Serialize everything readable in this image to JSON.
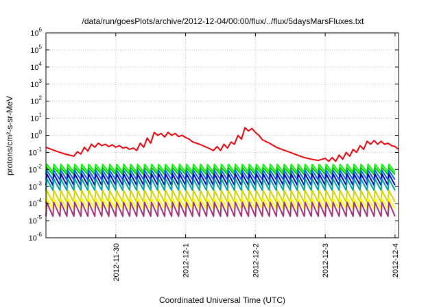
{
  "chart_data": {
    "type": "line",
    "title": "/data/run/goesPlots/archive/2012-12-04/00:00/flux/../flux/5daysMarsFluxes.txt",
    "xlabel": "Coordinated Universal Time (UTC)",
    "ylabel": "protons/cm²-s-sr-MeV",
    "y_scale": "log",
    "ylim": [
      1e-06,
      1000000.0
    ],
    "xlim": [
      0,
      5.05
    ],
    "x_ticks": [
      {
        "value": 1.0,
        "label": "2012-11-30"
      },
      {
        "value": 2.0,
        "label": "2012-12-1"
      },
      {
        "value": 3.0,
        "label": "2012-12-2"
      },
      {
        "value": 4.0,
        "label": "2012-12-3"
      },
      {
        "value": 5.0,
        "label": "2012-12-4"
      }
    ],
    "y_ticks": [
      {
        "exp": -6
      },
      {
        "exp": -5
      },
      {
        "exp": -4
      },
      {
        "exp": -3
      },
      {
        "exp": -2
      },
      {
        "exp": -1
      },
      {
        "exp": 0
      },
      {
        "exp": 1
      },
      {
        "exp": 2
      },
      {
        "exp": 3
      },
      {
        "exp": 4
      },
      {
        "exp": 5
      },
      {
        "exp": 6
      }
    ],
    "grid": true,
    "series": [
      {
        "color": "#e8000b",
        "x": [
          0.0,
          0.1,
          0.2,
          0.3,
          0.4,
          0.45,
          0.5,
          0.55,
          0.6,
          0.65,
          0.7,
          0.75,
          0.8,
          0.85,
          0.9,
          0.95,
          1.0,
          1.05,
          1.1,
          1.15,
          1.2,
          1.25,
          1.3,
          1.35,
          1.4,
          1.45,
          1.5,
          1.55,
          1.6,
          1.65,
          1.7,
          1.75,
          1.8,
          1.85,
          1.9,
          1.95,
          2.0,
          2.05,
          2.1,
          2.2,
          2.3,
          2.4,
          2.45,
          2.5,
          2.55,
          2.6,
          2.65,
          2.7,
          2.75,
          2.8,
          2.85,
          2.9,
          2.95,
          3.0,
          3.05,
          3.1,
          3.2,
          3.3,
          3.4,
          3.5,
          3.6,
          3.7,
          3.8,
          3.9,
          4.0,
          4.05,
          4.1,
          4.15,
          4.2,
          4.25,
          4.3,
          4.35,
          4.4,
          4.45,
          4.5,
          4.55,
          4.6,
          4.65,
          4.7,
          4.75,
          4.8,
          4.85,
          4.9,
          4.95,
          5.0,
          5.05
        ],
        "values": [
          0.2,
          0.14,
          0.1,
          0.075,
          0.06,
          0.11,
          0.08,
          0.2,
          0.12,
          0.3,
          0.2,
          0.35,
          0.25,
          0.3,
          0.22,
          0.28,
          0.2,
          0.25,
          0.18,
          0.2,
          0.15,
          0.18,
          0.13,
          0.35,
          0.2,
          0.7,
          0.35,
          1.5,
          1.0,
          1.3,
          0.8,
          1.5,
          1.0,
          1.3,
          0.85,
          1.0,
          0.75,
          0.6,
          0.42,
          0.3,
          0.2,
          0.13,
          0.22,
          0.13,
          0.3,
          0.18,
          0.4,
          0.3,
          1.0,
          0.6,
          2.8,
          1.8,
          2.5,
          1.5,
          1.0,
          0.55,
          0.35,
          0.2,
          0.14,
          0.1,
          0.07,
          0.05,
          0.04,
          0.034,
          0.045,
          0.03,
          0.05,
          0.03,
          0.07,
          0.04,
          0.1,
          0.06,
          0.15,
          0.1,
          0.25,
          0.15,
          0.45,
          0.3,
          0.5,
          0.3,
          0.45,
          0.3,
          0.35,
          0.25,
          0.22,
          0.15
        ]
      },
      {
        "color": "#00ff00",
        "peak": 0.02,
        "trough": 0.007
      },
      {
        "color": "#00c800",
        "peak": 0.013,
        "trough": 0.005
      },
      {
        "color": "#0064ff",
        "peak": 0.009,
        "trough": 0.0025
      },
      {
        "color": "#0000b4",
        "peak": 0.0055,
        "trough": 0.0012
      },
      {
        "color": "#00a0a0",
        "peak": 0.0028,
        "trough": 0.0006
      },
      {
        "color": "#d2d200",
        "peak": 0.0006,
        "trough": 0.00012
      },
      {
        "color": "#ffff00",
        "peak": 0.0002,
        "trough": 5e-05
      },
      {
        "color": "#a03278",
        "peak": 0.00012,
        "trough": 1.8e-05
      }
    ],
    "oscillation": {
      "period": 0.1,
      "x_start": 0.0,
      "x_end": 5.05
    }
  }
}
